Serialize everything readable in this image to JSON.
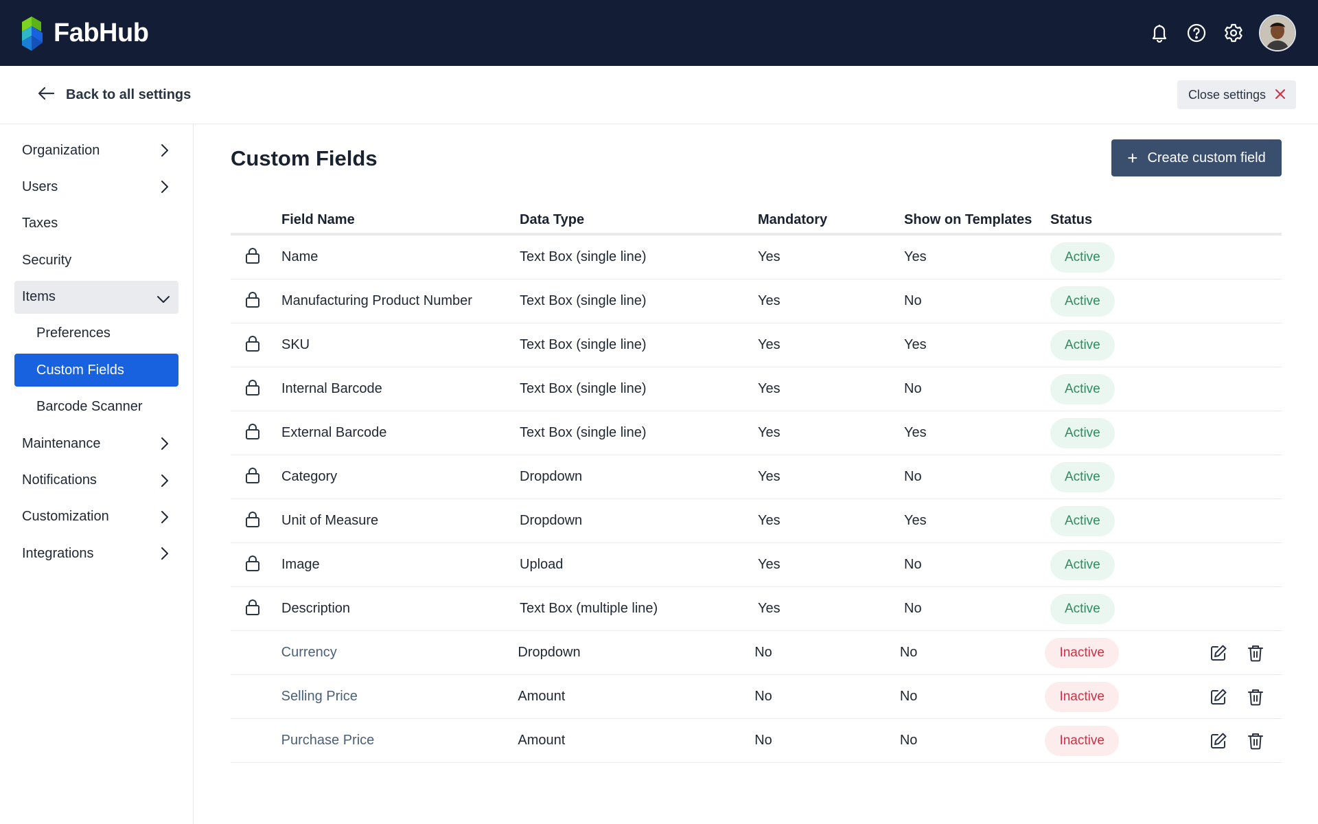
{
  "app": {
    "name": "FabHub"
  },
  "header": {
    "icons": [
      "bell-icon",
      "help-icon",
      "gear-icon"
    ],
    "brand_colors": [
      "#7ed321",
      "#1862e0",
      "#2fb6c8"
    ]
  },
  "subbar": {
    "back_label": "Back to all settings",
    "close_label": "Close settings"
  },
  "sidebar": {
    "items": [
      {
        "label": "Organization"
      },
      {
        "label": "Users"
      },
      {
        "label": "Taxes"
      },
      {
        "label": "Security"
      },
      {
        "label": "Items"
      },
      {
        "label": "Preferences"
      },
      {
        "label": "Custom Fields"
      },
      {
        "label": "Barcode Scanner"
      },
      {
        "label": "Maintenance"
      },
      {
        "label": "Notifications"
      },
      {
        "label": "Customization"
      },
      {
        "label": "Integrations"
      }
    ]
  },
  "main": {
    "title": "Custom Fields",
    "create_label": "Create custom field",
    "columns": [
      "Field Name",
      "Data Type",
      "Mandatory",
      "Show on Templates",
      "Status"
    ],
    "rows": [
      {
        "name": "Name",
        "type": "Text Box (single line)",
        "mandatory": "Yes",
        "show": "Yes",
        "status": "Active",
        "locked": true
      },
      {
        "name": "Manufacturing Product Number",
        "type": "Text Box (single line)",
        "mandatory": "Yes",
        "show": "No",
        "status": "Active",
        "locked": true
      },
      {
        "name": "SKU",
        "type": "Text Box (single line)",
        "mandatory": "Yes",
        "show": "Yes",
        "status": "Active",
        "locked": true
      },
      {
        "name": "Internal Barcode",
        "type": "Text Box (single line)",
        "mandatory": "Yes",
        "show": "No",
        "status": "Active",
        "locked": true
      },
      {
        "name": "External Barcode",
        "type": "Text Box (single line)",
        "mandatory": "Yes",
        "show": "Yes",
        "status": "Active",
        "locked": true
      },
      {
        "name": "Category",
        "type": "Dropdown",
        "mandatory": "Yes",
        "show": "No",
        "status": "Active",
        "locked": true
      },
      {
        "name": "Unit of Measure",
        "type": "Dropdown",
        "mandatory": "Yes",
        "show": "Yes",
        "status": "Active",
        "locked": true
      },
      {
        "name": "Image",
        "type": "Upload",
        "mandatory": "Yes",
        "show": "No",
        "status": "Active",
        "locked": true
      },
      {
        "name": "Description",
        "type": "Text Box (multiple line)",
        "mandatory": "Yes",
        "show": "No",
        "status": "Active",
        "locked": true
      },
      {
        "name": "Currency",
        "type": "Dropdown",
        "mandatory": "No",
        "show": "No",
        "status": "Inactive",
        "locked": false
      },
      {
        "name": "Selling Price",
        "type": "Amount",
        "mandatory": "No",
        "show": "No",
        "status": "Inactive",
        "locked": false
      },
      {
        "name": "Purchase Price",
        "type": "Amount",
        "mandatory": "No",
        "show": "No",
        "status": "Inactive",
        "locked": false
      }
    ]
  },
  "colors": {
    "topbar": "#131d35",
    "accent": "#1862e0",
    "create_button": "#3a4f6e",
    "active_text": "#2e8a5f",
    "inactive_text": "#cf3045"
  }
}
